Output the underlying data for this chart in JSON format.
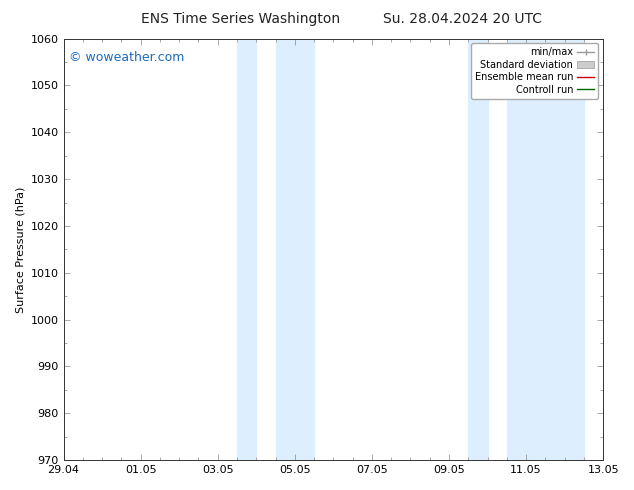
{
  "title_left": "ENS Time Series Washington",
  "title_right": "Su. 28.04.2024 20 UTC",
  "ylabel": "Surface Pressure (hPa)",
  "ylim": [
    970,
    1060
  ],
  "yticks": [
    970,
    980,
    990,
    1000,
    1010,
    1020,
    1030,
    1040,
    1050,
    1060
  ],
  "xtick_labels": [
    "29.04",
    "01.05",
    "03.05",
    "05.05",
    "07.05",
    "09.05",
    "11.05",
    "13.05"
  ],
  "xtick_positions": [
    0,
    2,
    4,
    6,
    8,
    10,
    12,
    14
  ],
  "shaded_bands": [
    {
      "x_start": 4.7,
      "x_end": 5.5
    },
    {
      "x_start": 5.5,
      "x_end": 6.5
    },
    {
      "x_start": 10.7,
      "x_end": 11.5
    },
    {
      "x_start": 11.5,
      "x_end": 12.5
    }
  ],
  "shaded_color": "#ddeeff",
  "watermark_text": "© woweather.com",
  "watermark_color": "#1a6bbf",
  "watermark_fontsize": 9,
  "legend_labels": [
    "min/max",
    "Standard deviation",
    "Ensemble mean run",
    "Controll run"
  ],
  "background_color": "#ffffff",
  "title_fontsize": 10,
  "axis_fontsize": 8,
  "tick_fontsize": 8
}
